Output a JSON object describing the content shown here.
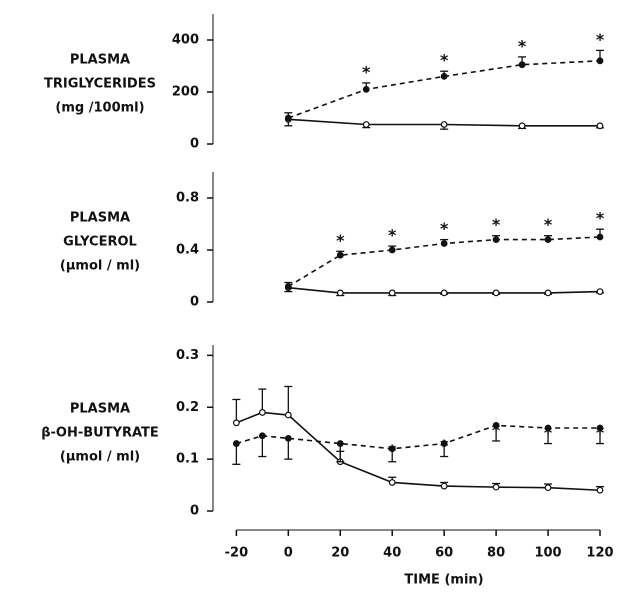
{
  "chart_data": [
    {
      "type": "line",
      "ylabel": [
        "PLASMA",
        "TRIGLYCERIDES",
        "(mg /100ml)"
      ],
      "xlim": [
        -29,
        120
      ],
      "ylim": [
        0,
        500
      ],
      "yticks": [
        0,
        200,
        400
      ],
      "series": [
        {
          "style": "solid",
          "marker": "open",
          "color": "#111111",
          "error_bars": "down",
          "x": [
            0,
            30,
            60,
            90,
            120
          ],
          "values": [
            95,
            75,
            75,
            70,
            70
          ],
          "errors": [
            25,
            12,
            18,
            10,
            8
          ]
        },
        {
          "style": "dashed",
          "marker": "filled",
          "color": "#111111",
          "error_bars": "up",
          "x": [
            0,
            30,
            60,
            90,
            120
          ],
          "values": [
            100,
            210,
            260,
            305,
            320
          ],
          "errors": [
            20,
            25,
            20,
            30,
            40
          ],
          "significance": [
            null,
            "*",
            "*",
            "*",
            "*"
          ]
        }
      ]
    },
    {
      "type": "line",
      "ylabel": [
        "PLASMA",
        "GLYCEROL",
        "(μmol / ml)"
      ],
      "xlim": [
        -29,
        120
      ],
      "ylim": [
        0,
        1.0
      ],
      "yticks": [
        0,
        0.4,
        0.8
      ],
      "series": [
        {
          "style": "solid",
          "marker": "open",
          "color": "#111111",
          "error_bars": "down",
          "x": [
            0,
            20,
            40,
            60,
            80,
            100,
            120
          ],
          "values": [
            0.11,
            0.07,
            0.07,
            0.07,
            0.07,
            0.07,
            0.08
          ],
          "errors": [
            0.03,
            0.02,
            0.02,
            0.01,
            0.01,
            0.01,
            0.01
          ]
        },
        {
          "style": "dashed",
          "marker": "filled",
          "color": "#111111",
          "error_bars": "up",
          "x": [
            0,
            20,
            40,
            60,
            80,
            100,
            120
          ],
          "values": [
            0.12,
            0.36,
            0.4,
            0.45,
            0.48,
            0.48,
            0.5
          ],
          "errors": [
            0.03,
            0.03,
            0.03,
            0.03,
            0.03,
            0.03,
            0.06
          ],
          "significance": [
            null,
            "*",
            "*",
            "*",
            "*",
            "*",
            "*"
          ]
        }
      ]
    },
    {
      "type": "line",
      "ylabel": [
        "PLASMA",
        "β-OH-BUTYRATE",
        "(μmol / ml)"
      ],
      "xlabel": "TIME (min)",
      "xlim": [
        -29,
        120
      ],
      "xticks": [
        -20,
        0,
        20,
        40,
        60,
        80,
        100,
        120
      ],
      "ylim": [
        0,
        0.32
      ],
      "yticks": [
        0,
        0.1,
        0.2,
        0.3
      ],
      "series": [
        {
          "style": "solid",
          "marker": "open",
          "color": "#111111",
          "error_bars": "up",
          "x": [
            -20,
            -10,
            0,
            20,
            40,
            60,
            80,
            100,
            120
          ],
          "values": [
            0.17,
            0.19,
            0.185,
            0.095,
            0.055,
            0.048,
            0.046,
            0.045,
            0.04
          ],
          "errors": [
            0.045,
            0.045,
            0.055,
            0.02,
            0.01,
            0.007,
            0.007,
            0.007,
            0.007
          ]
        },
        {
          "style": "dashed",
          "marker": "filled",
          "color": "#111111",
          "error_bars": "down",
          "x": [
            -20,
            -10,
            0,
            20,
            40,
            60,
            80,
            100,
            120
          ],
          "values": [
            0.13,
            0.145,
            0.14,
            0.13,
            0.12,
            0.13,
            0.165,
            0.16,
            0.16
          ],
          "errors": [
            0.04,
            0.04,
            0.04,
            0.035,
            0.025,
            0.025,
            0.03,
            0.03,
            0.03
          ],
          "significance": [
            null,
            null,
            null,
            null,
            "*",
            "*",
            "*",
            "*",
            "*"
          ]
        }
      ]
    }
  ]
}
